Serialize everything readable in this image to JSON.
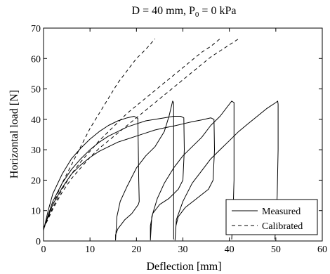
{
  "chart_data": {
    "type": "line",
    "title": "D = 40 mm, P",
    "title_sub": "0",
    "title_tail": " = 0 kPa",
    "xlabel": "Deflection [mm]",
    "ylabel": "Horizontal load [N]",
    "xlim": [
      0,
      60
    ],
    "ylim": [
      0,
      70
    ],
    "xticks": [
      0,
      10,
      20,
      30,
      40,
      50,
      60
    ],
    "yticks": [
      0,
      10,
      20,
      30,
      40,
      50,
      60,
      70
    ],
    "grid": false,
    "legend_position": "bottom-right",
    "series": [
      {
        "name": "Measured",
        "style": "solid",
        "curves": [
          [
            [
              0,
              3.5
            ],
            [
              1,
              10
            ],
            [
              2,
              15.5
            ],
            [
              4,
              22
            ],
            [
              6,
              27
            ],
            [
              8,
              30.5
            ],
            [
              10,
              33.5
            ],
            [
              12,
              36
            ],
            [
              14,
              38
            ],
            [
              16,
              39.5
            ],
            [
              18,
              40.5
            ],
            [
              19.5,
              41
            ],
            [
              20.3,
              40.3
            ],
            [
              20.4,
              30
            ],
            [
              20.5,
              20
            ],
            [
              20.6,
              13
            ],
            [
              20.4,
              12
            ],
            [
              19,
              9
            ],
            [
              17.5,
              7
            ],
            [
              16,
              4
            ],
            [
              15.5,
              2
            ],
            [
              15.5,
              0.3
            ],
            [
              15.8,
              8
            ],
            [
              16.5,
              13
            ],
            [
              18,
              18
            ],
            [
              20,
              24
            ],
            [
              22,
              28
            ],
            [
              24,
              31
            ],
            [
              26,
              36
            ],
            [
              27,
              41
            ],
            [
              27.8,
              46
            ],
            [
              28,
              45.5
            ],
            [
              28,
              32
            ],
            [
              28,
              20
            ],
            [
              28,
              0.5
            ]
          ],
          [
            [
              0,
              4
            ],
            [
              2,
              13
            ],
            [
              4,
              19
            ],
            [
              6,
              23.5
            ],
            [
              8,
              27
            ],
            [
              10,
              30
            ],
            [
              12,
              32.5
            ],
            [
              14,
              34.5
            ],
            [
              16,
              36
            ],
            [
              18,
              37.5
            ],
            [
              20,
              38.5
            ],
            [
              22,
              39.5
            ],
            [
              24,
              40
            ],
            [
              26,
              40.5
            ],
            [
              28,
              41
            ],
            [
              29.5,
              41
            ],
            [
              30.2,
              40.5
            ],
            [
              30.3,
              30
            ],
            [
              30,
              20
            ],
            [
              29,
              17
            ],
            [
              27,
              14
            ],
            [
              25,
              12
            ],
            [
              23.5,
              9
            ],
            [
              23,
              5
            ],
            [
              23,
              0.3
            ],
            [
              23.3,
              8
            ],
            [
              24.5,
              14
            ],
            [
              26,
              19
            ],
            [
              28,
              24
            ],
            [
              30,
              28
            ],
            [
              32,
              31
            ],
            [
              34,
              34
            ],
            [
              36,
              38
            ],
            [
              38,
              41
            ],
            [
              39.5,
              44
            ],
            [
              40.5,
              46
            ],
            [
              41,
              45.5
            ],
            [
              41,
              33
            ],
            [
              41,
              20
            ],
            [
              40.8,
              10
            ],
            [
              40.5,
              0.5
            ]
          ],
          [
            [
              0,
              4
            ],
            [
              2,
              12
            ],
            [
              4,
              17.5
            ],
            [
              6,
              22
            ],
            [
              8,
              25
            ],
            [
              10,
              27.5
            ],
            [
              12,
              29.5
            ],
            [
              14,
              31
            ],
            [
              16,
              32.5
            ],
            [
              18,
              33.5
            ],
            [
              20,
              34.5
            ],
            [
              22,
              35.5
            ],
            [
              24,
              36.5
            ],
            [
              26,
              37.2
            ],
            [
              28,
              37.8
            ],
            [
              30,
              38.5
            ],
            [
              32,
              39.2
            ],
            [
              34,
              39.8
            ],
            [
              36,
              40.5
            ],
            [
              36.7,
              40
            ],
            [
              36.8,
              30
            ],
            [
              36.5,
              20
            ],
            [
              35.5,
              17
            ],
            [
              33,
              14
            ],
            [
              30.5,
              11
            ],
            [
              29,
              8
            ],
            [
              28.5,
              5
            ],
            [
              28.3,
              0.3
            ],
            [
              28.6,
              7
            ],
            [
              30,
              13
            ],
            [
              32,
              19
            ],
            [
              34,
              23
            ],
            [
              36,
              27
            ],
            [
              38,
              30
            ],
            [
              40,
              33
            ],
            [
              42,
              36
            ],
            [
              44,
              38.5
            ],
            [
              46,
              41
            ],
            [
              48,
              43.5
            ],
            [
              50,
              45.5
            ],
            [
              50.4,
              46
            ],
            [
              50.5,
              45
            ],
            [
              50.5,
              30
            ],
            [
              50.3,
              15
            ],
            [
              50,
              5
            ],
            [
              49.8,
              0.5
            ]
          ]
        ]
      },
      {
        "name": "Calibrated",
        "style": "dashed",
        "curves": [
          [
            [
              0,
              4
            ],
            [
              2,
              12
            ],
            [
              4,
              19
            ],
            [
              6,
              25
            ],
            [
              8,
              31
            ],
            [
              10,
              37
            ],
            [
              12,
              42
            ],
            [
              14,
              47
            ],
            [
              16,
              52
            ],
            [
              18,
              56
            ],
            [
              20,
              60
            ],
            [
              22,
              63
            ],
            [
              24,
              66.5
            ]
          ],
          [
            [
              0,
              4
            ],
            [
              2,
              11
            ],
            [
              4,
              17
            ],
            [
              6,
              22
            ],
            [
              8,
              26
            ],
            [
              10,
              29.5
            ],
            [
              12,
              33
            ],
            [
              14,
              36
            ],
            [
              16,
              39
            ],
            [
              18,
              42
            ],
            [
              20,
              44.5
            ],
            [
              22,
              47
            ],
            [
              24,
              49.5
            ],
            [
              26,
              52
            ],
            [
              28,
              54.5
            ],
            [
              30,
              57
            ],
            [
              32,
              59.5
            ],
            [
              34,
              62
            ],
            [
              36,
              64
            ],
            [
              38,
              66.5
            ]
          ],
          [
            [
              0,
              4
            ],
            [
              2,
              10.5
            ],
            [
              4,
              16
            ],
            [
              6,
              20.5
            ],
            [
              8,
              24
            ],
            [
              10,
              27.5
            ],
            [
              12,
              30.5
            ],
            [
              14,
              33
            ],
            [
              16,
              35.5
            ],
            [
              18,
              38
            ],
            [
              20,
              40.5
            ],
            [
              22,
              43
            ],
            [
              24,
              45.5
            ],
            [
              26,
              48
            ],
            [
              28,
              50.5
            ],
            [
              30,
              53
            ],
            [
              32,
              55.5
            ],
            [
              34,
              58
            ],
            [
              36,
              60.5
            ],
            [
              38,
              62.5
            ],
            [
              40,
              64.5
            ],
            [
              42,
              66.5
            ]
          ]
        ]
      }
    ]
  }
}
